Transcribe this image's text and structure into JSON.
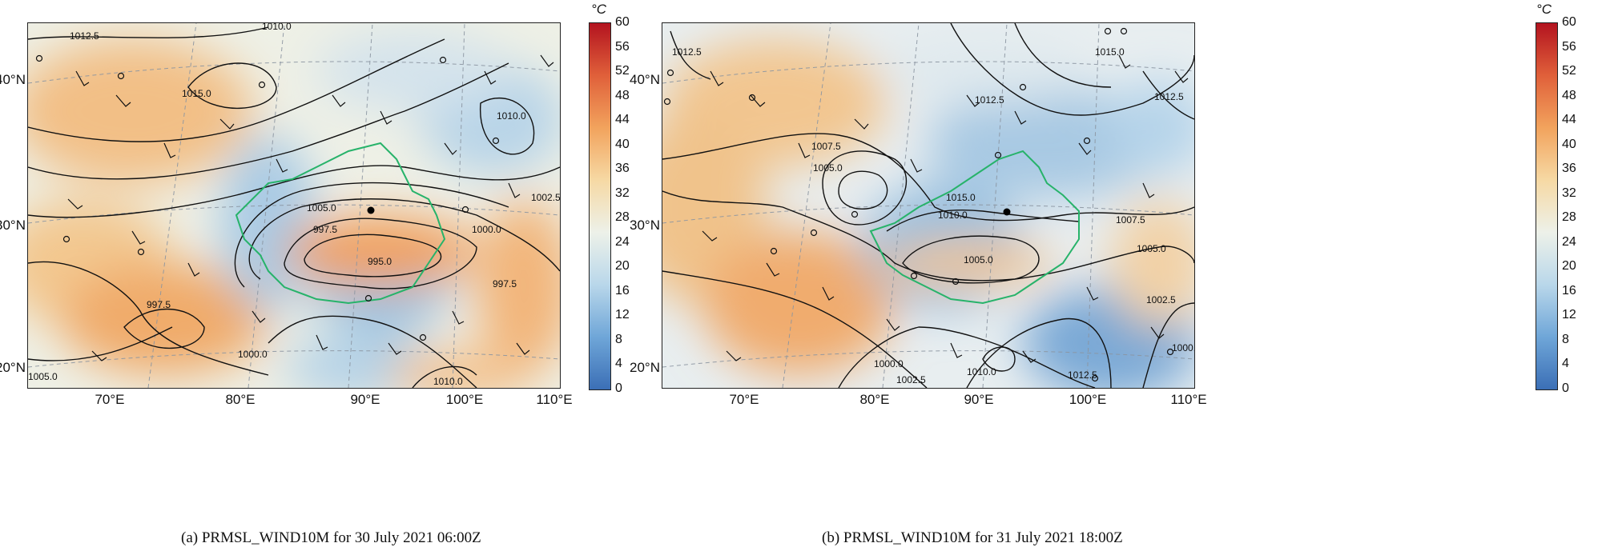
{
  "colorbar": {
    "unit": "°C",
    "ticks": [
      "60",
      "56",
      "52",
      "48",
      "44",
      "40",
      "36",
      "32",
      "28",
      "24",
      "20",
      "16",
      "12",
      "8",
      "4",
      "0"
    ],
    "min": 0,
    "max": 60,
    "colors": [
      "#3b6fb6",
      "#6fa6d8",
      "#b9d7ea",
      "#edf1e9",
      "#f6d9a4",
      "#f2a35d",
      "#e0603a",
      "#b3131f"
    ]
  },
  "axes": {
    "lat_labels": [
      "40°N",
      "30°N",
      "20°N"
    ],
    "lon_labels": [
      "70°E",
      "80°E",
      "90°E",
      "100°E",
      "110°E"
    ]
  },
  "panels": [
    {
      "caption": "(a)  PRMSL_WIND10M for 30 July 2021 06:00Z",
      "contour_labels": [
        "1012.5",
        "1010.0",
        "1015.0",
        "1010.0",
        "1005.0",
        "1002.5",
        "997.5",
        "995.0",
        "1000.0",
        "997.5",
        "997.5",
        "1000.0",
        "1010.0",
        "1005.0"
      ]
    },
    {
      "caption": "(b)  PRMSL_WIND10M for 31 July 2021 18:00Z",
      "contour_labels": [
        "1012.5",
        "1015.0",
        "1012.5",
        "1012.5",
        "1007.5",
        "1005.0",
        "1015.0",
        "1010.0",
        "1007.5",
        "1005.0",
        "1005.0",
        "1002.5",
        "1000.0",
        "1000.0",
        "1002.5",
        "1010.0",
        "1012.5"
      ]
    }
  ]
}
